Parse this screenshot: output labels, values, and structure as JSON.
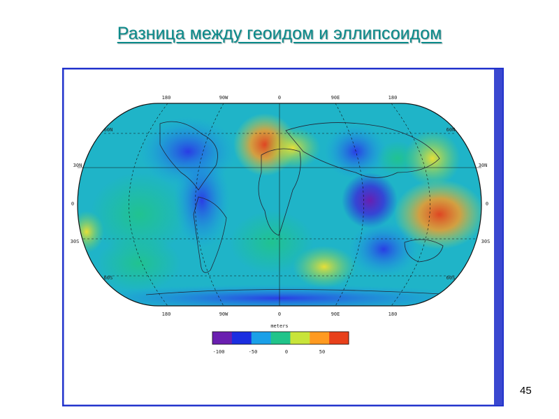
{
  "title": "Разница между геоидом и эллипсоидом",
  "page_number": "45",
  "map": {
    "lon_labels": [
      "180",
      "90W",
      "0",
      "90E",
      "180"
    ],
    "lat_labels_left": [
      "60N",
      "30N",
      "0",
      "30S",
      "60S"
    ],
    "lat_labels_right": [
      "60N",
      "30N",
      "0",
      "30S",
      "60S"
    ]
  },
  "colorbar": {
    "title": "meters",
    "ticks": [
      "-100",
      "-50",
      "0",
      "50"
    ],
    "colors": [
      "#6a1fb0",
      "#1b2ee0",
      "#1aa0e8",
      "#20c48a",
      "#c8e43a",
      "#ff9a20",
      "#e8401a"
    ]
  }
}
